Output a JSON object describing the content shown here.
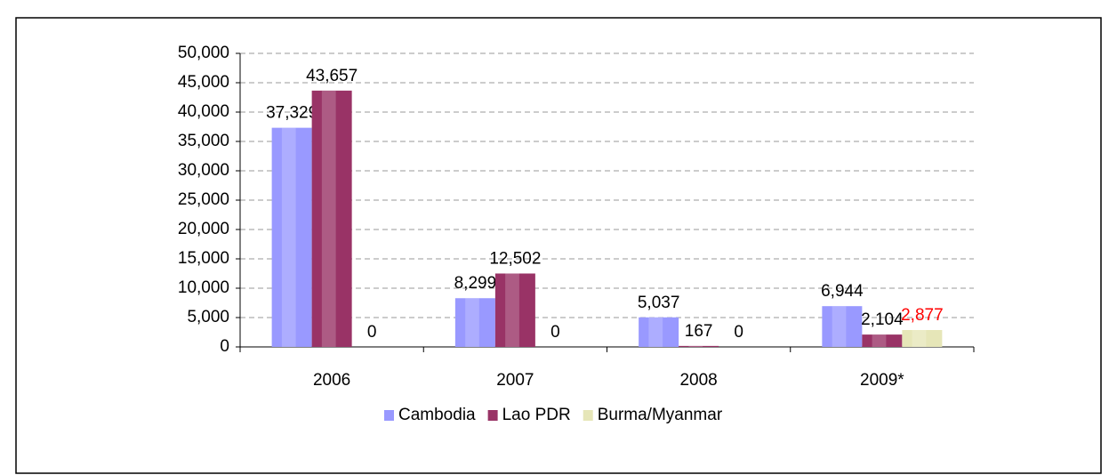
{
  "chart_data": {
    "type": "bar",
    "categories": [
      "2006",
      "2007",
      "2008",
      "2009*"
    ],
    "series": [
      {
        "name": "Cambodia",
        "color": "#9999ff",
        "values": [
          37329,
          8299,
          5037,
          6944
        ],
        "value_labels": [
          "37,329",
          "8,299",
          "5,037",
          "6,944"
        ],
        "label_colors": [
          "#000000",
          "#000000",
          "#000000",
          "#000000"
        ]
      },
      {
        "name": "Lao PDR",
        "color": "#993366",
        "values": [
          43657,
          12502,
          167,
          2104
        ],
        "value_labels": [
          "43,657",
          "12,502",
          "167",
          "2,104"
        ],
        "label_colors": [
          "#000000",
          "#000000",
          "#000000",
          "#000000"
        ]
      },
      {
        "name": "Burma/Myanmar",
        "color": "#e6e6b8",
        "values": [
          0,
          0,
          0,
          2877
        ],
        "value_labels": [
          "0",
          "0",
          "0",
          "2,877"
        ],
        "label_colors": [
          "#000000",
          "#000000",
          "#000000",
          "#ff0000"
        ]
      }
    ],
    "ylim": [
      0,
      50000
    ],
    "yticks": [
      0,
      {
        "value": 5000,
        "label": "5,000"
      },
      {
        "value": 10000,
        "label": "10,000"
      },
      {
        "value": 15000,
        "label": "15,000"
      },
      {
        "value": 20000,
        "label": "20,000"
      },
      {
        "value": 25000,
        "label": "25,000"
      },
      {
        "value": 30000,
        "label": "30,000"
      },
      {
        "value": 35000,
        "label": "35,000"
      },
      {
        "value": 40000,
        "label": "40,000"
      },
      {
        "value": 45000,
        "label": "45,000"
      },
      {
        "value": 50000,
        "label": "50,000"
      }
    ],
    "grid": true,
    "legend": "bottom"
  }
}
